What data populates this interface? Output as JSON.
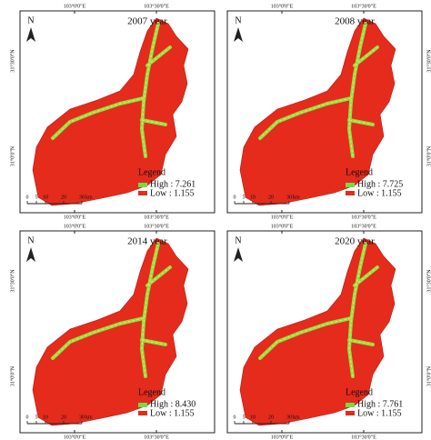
{
  "labels": {
    "lon_west": "103°0'0\"E",
    "lon_east": "103°30'0\"E",
    "lat_north": "31°30'0\"N",
    "lat_south": "31°0'0\"N",
    "north": "N",
    "scale": [
      "0",
      "5",
      "10",
      "20",
      "30",
      "km"
    ]
  },
  "panels": [
    {
      "title": "2007 year",
      "legend_title": "Legend",
      "high": "High : 7.261",
      "low": "Low : 1.155"
    },
    {
      "title": "2008 year",
      "legend_title": "Legend",
      "high": "High : 7.725",
      "low": "Low : 1.155"
    },
    {
      "title": "2014 year",
      "legend_title": "Legend",
      "high": "High : 8.430",
      "low": "Low : 1.155"
    },
    {
      "title": "2020 year",
      "legend_title": "Legend",
      "high": "High : 7.761",
      "low": "Low : 1.155"
    }
  ]
}
